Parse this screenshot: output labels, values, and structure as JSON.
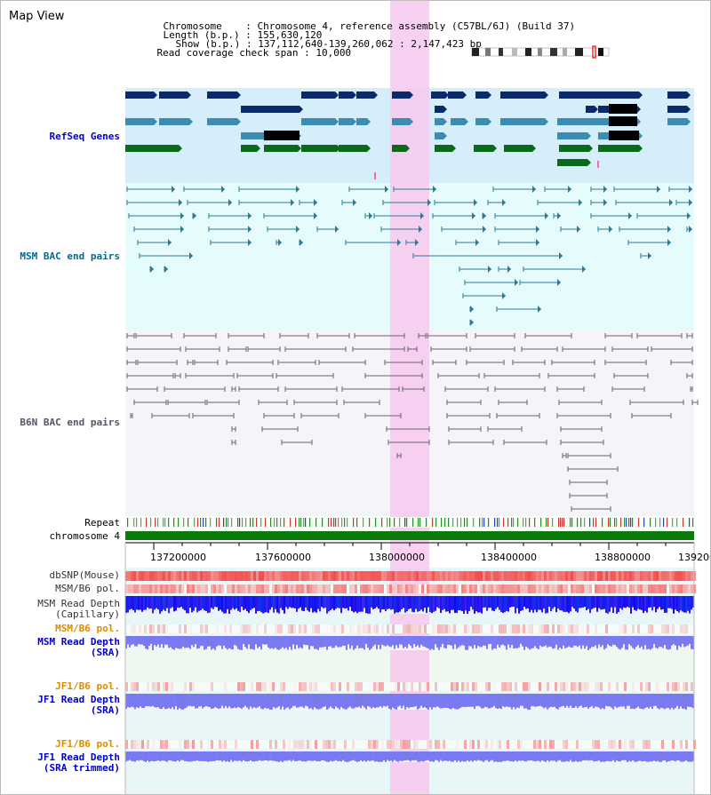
{
  "page": {
    "title": "Map View",
    "info": {
      "chromosome_key": "Chromosome",
      "chromosome_val": ": Chromosome 4, reference assembly (C57BL/6J) (Build 37)",
      "length_key": "Length (b.p.)",
      "length_val": ": 155,630,120",
      "show_key": "Show (b.p.)",
      "show_val": ": 137,112,640-139,260,062 : 2,147,423 bp",
      "coverage_key": "Read coverage check span",
      "coverage_val": ": 10,000"
    }
  },
  "tracks": {
    "refseq": "RefSeq Genes",
    "msm_bac": "MSM BAC end pairs",
    "b6n_bac": "B6N BAC end pairs",
    "repeat": "Repeat",
    "chromosome": "chromosome 4",
    "dbsnp": "dbSNP(Mouse)",
    "msm_b6_pol_1": "MSM/B6 pol.",
    "msm_depth_cap_1": "MSM Read Depth",
    "msm_depth_cap_2": "(Capillary)",
    "msm_b6_pol_2": "MSM/B6 pol.",
    "msm_depth_sra_1": "MSM Read Depth",
    "msm_depth_sra_2": "(SRA)",
    "jf1_pol_1": "JF1/B6 pol.",
    "jf1_depth_1": "JF1 Read Depth",
    "jf1_depth_1b": "(SRA)",
    "jf1_pol_2": "JF1/B6 pol.",
    "jf1_depth_2": "JF1 Read Depth",
    "jf1_depth_2b": "(SRA trimmed)"
  },
  "axis": {
    "ticks": [
      "137200000",
      "137600000",
      "138000000",
      "138400000",
      "138800000",
      "139200"
    ]
  },
  "colors": {
    "highlight": "#f7c8ef",
    "refseq_bg": "#d6eefa",
    "msm_bg": "#e6fbfb",
    "b6n_bg": "#f1f1f8",
    "bottom_bg": "#e8f6f8",
    "chrom_green": "#0a7a0a",
    "gene_navy": "#0a2a6a",
    "gene_steel": "#3a8db0",
    "gene_green": "#0a6a1a",
    "msm_line": "#2a7a9a",
    "b6n_line": "#666666",
    "depth_blue": "#1010ee",
    "depth_light": "#7a7af0",
    "snp_red": "#f05050"
  }
}
